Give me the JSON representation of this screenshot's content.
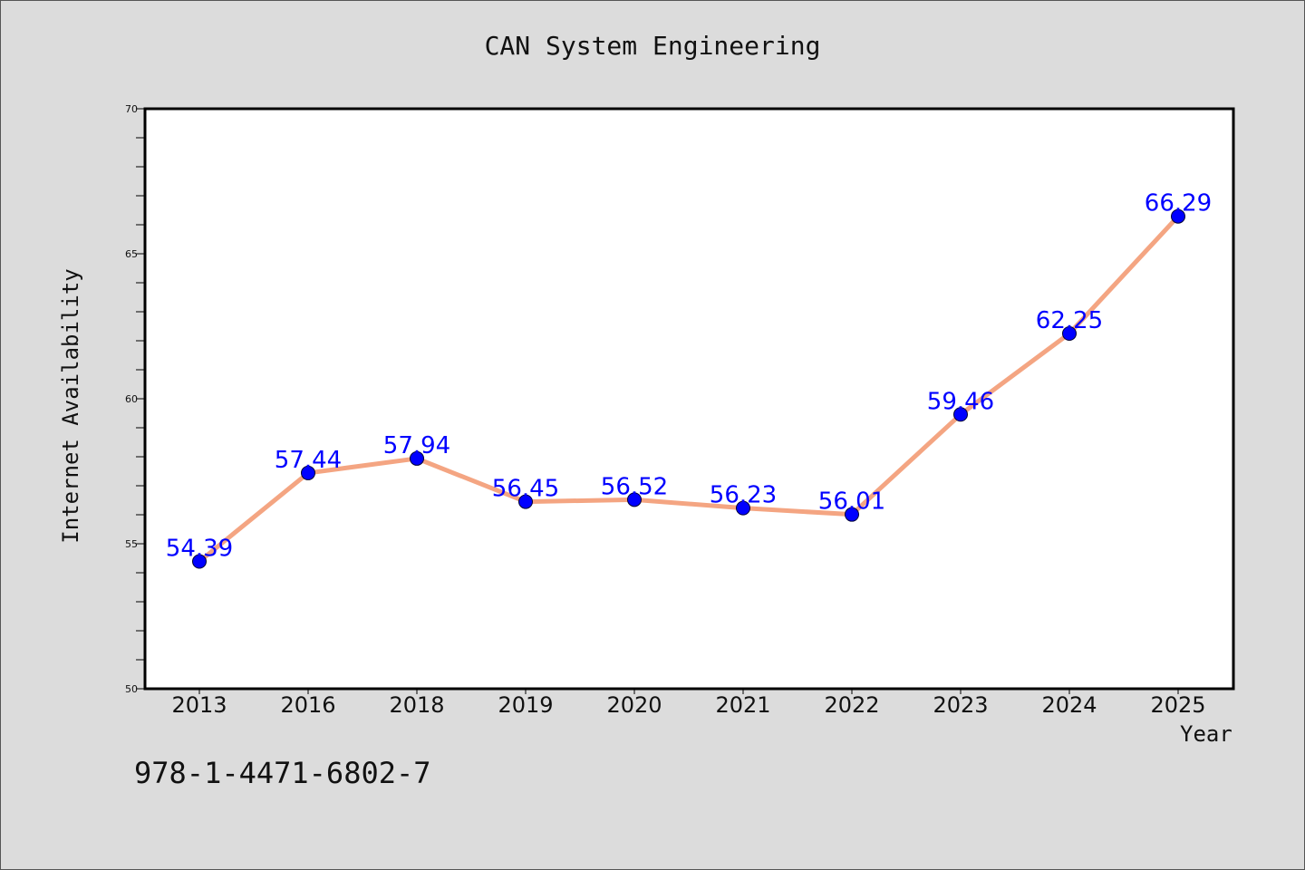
{
  "chart_data": {
    "type": "line",
    "title": "CAN System Engineering",
    "xlabel": "Year",
    "ylabel": "Internet Availability",
    "categories": [
      "2013",
      "2016",
      "2018",
      "2019",
      "2020",
      "2021",
      "2022",
      "2023",
      "2024",
      "2025"
    ],
    "series": [
      {
        "values": [
          54.39,
          57.44,
          57.94,
          56.45,
          56.52,
          56.23,
          56.01,
          59.46,
          62.25,
          66.29
        ]
      }
    ],
    "data_labels": [
      "54.39",
      "57.44",
      "57.94",
      "56.45",
      "56.52",
      "56.23",
      "56.01",
      "59.46",
      "62.25",
      "66.29"
    ],
    "ylim": [
      50,
      70
    ],
    "yticks": [
      "50",
      "55",
      "60",
      "65",
      "70"
    ],
    "grid": false,
    "colors": {
      "line": "#f4a582",
      "marker": "#0000ff",
      "label": "#0000ff",
      "background": "#dcdcdc",
      "plot_background": "#ffffff"
    }
  },
  "footer_text": "978-1-4471-6802-7"
}
